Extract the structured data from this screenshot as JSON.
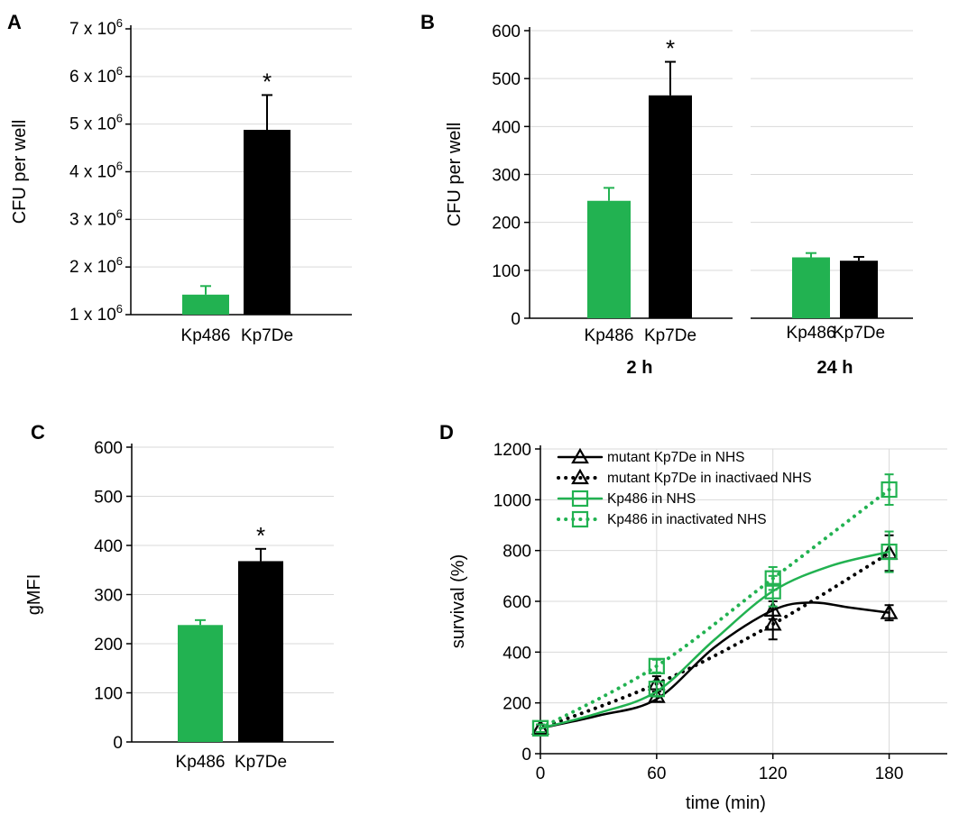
{
  "colors": {
    "green": "#22b251",
    "black": "#000000",
    "grid": "#d9d9d9"
  },
  "chart_data": [
    {
      "panel": "A",
      "type": "bar",
      "ylabel": "CFU per well",
      "ylim": [
        1000000,
        7000000
      ],
      "yticks": [
        {
          "value": 1000000,
          "base": "1 x 10",
          "exp": "6"
        },
        {
          "value": 2000000,
          "base": "2 x 10",
          "exp": "6"
        },
        {
          "value": 3000000,
          "base": "3 x 10",
          "exp": "6"
        },
        {
          "value": 4000000,
          "base": "4 x 10",
          "exp": "6"
        },
        {
          "value": 5000000,
          "base": "5 x 10",
          "exp": "6"
        },
        {
          "value": 6000000,
          "base": "6 x 10",
          "exp": "6"
        },
        {
          "value": 7000000,
          "base": "7 x 10",
          "exp": "6"
        }
      ],
      "categories": [
        "Kp486",
        "Kp7De"
      ],
      "values": [
        1420000,
        4880000
      ],
      "errors": [
        180000,
        730000
      ],
      "bar_colors": [
        "green",
        "black"
      ],
      "annotations": [
        {
          "category": "Kp7De",
          "text": "*"
        }
      ]
    },
    {
      "panel": "B",
      "type": "bar",
      "ylabel": "CFU per well",
      "ylim": [
        0,
        600
      ],
      "yticks": [
        0,
        100,
        200,
        300,
        400,
        500,
        600
      ],
      "groups": [
        {
          "label": "2 h",
          "categories": [
            "Kp486",
            "Kp7De"
          ],
          "values": [
            245,
            465
          ],
          "errors": [
            27,
            70
          ]
        },
        {
          "label": "24 h",
          "categories": [
            "Kp486",
            "Kp7De"
          ],
          "values": [
            127,
            120
          ],
          "errors": [
            9,
            8
          ]
        }
      ],
      "bar_colors": [
        "green",
        "black"
      ],
      "annotations": [
        {
          "group": "2 h",
          "category": "Kp7De",
          "text": "*"
        }
      ]
    },
    {
      "panel": "C",
      "type": "bar",
      "ylabel": "gMFI",
      "ylim": [
        0,
        600
      ],
      "yticks": [
        0,
        100,
        200,
        300,
        400,
        500,
        600
      ],
      "categories": [
        "Kp486",
        "Kp7De"
      ],
      "values": [
        238,
        368
      ],
      "errors": [
        10,
        25
      ],
      "bar_colors": [
        "green",
        "black"
      ],
      "annotations": [
        {
          "category": "Kp7De",
          "text": "*"
        }
      ]
    },
    {
      "panel": "D",
      "type": "line",
      "xlabel": "time (min)",
      "ylabel": "survival (%)",
      "xlim": [
        0,
        210
      ],
      "ylim": [
        0,
        1200
      ],
      "xticks": [
        0,
        60,
        120,
        180
      ],
      "yticks": [
        0,
        200,
        400,
        600,
        800,
        1000,
        1200
      ],
      "series": [
        {
          "name": "mutant Kp7De in NHS",
          "x": [
            0,
            60,
            120,
            180
          ],
          "y": [
            100,
            225,
            565,
            555
          ],
          "err": [
            15,
            20,
            35,
            30
          ],
          "color": "black",
          "dash": false,
          "marker": "triangle",
          "curve": [
            [
              0,
              100
            ],
            [
              30,
              150
            ],
            [
              60,
              215
            ],
            [
              90,
              420
            ],
            [
              120,
              565
            ],
            [
              140,
              595
            ],
            [
              160,
              575
            ],
            [
              180,
              555
            ]
          ]
        },
        {
          "name": "mutant Kp7De in inactivaed NHS",
          "x": [
            0,
            60,
            120,
            180
          ],
          "y": [
            100,
            275,
            510,
            790
          ],
          "err": [
            15,
            30,
            60,
            70
          ],
          "color": "black",
          "dash": true,
          "marker": "triangle",
          "curve": [
            [
              0,
              100
            ],
            [
              60,
              275
            ],
            [
              120,
              510
            ],
            [
              180,
              790
            ]
          ]
        },
        {
          "name": "Kp486 in NHS",
          "x": [
            0,
            60,
            120,
            180
          ],
          "y": [
            100,
            255,
            640,
            795
          ],
          "err": [
            15,
            30,
            60,
            80
          ],
          "color": "green",
          "dash": false,
          "marker": "square",
          "curve": [
            [
              0,
              100
            ],
            [
              30,
              160
            ],
            [
              60,
              245
            ],
            [
              90,
              450
            ],
            [
              120,
              640
            ],
            [
              150,
              740
            ],
            [
              180,
              795
            ]
          ]
        },
        {
          "name": "Kp486 in inactivated NHS",
          "x": [
            0,
            60,
            120,
            180
          ],
          "y": [
            100,
            345,
            690,
            1040
          ],
          "err": [
            15,
            25,
            45,
            60
          ],
          "color": "green",
          "dash": true,
          "marker": "square",
          "curve": [
            [
              0,
              100
            ],
            [
              60,
              345
            ],
            [
              120,
              690
            ],
            [
              180,
              1040
            ]
          ]
        }
      ]
    }
  ]
}
